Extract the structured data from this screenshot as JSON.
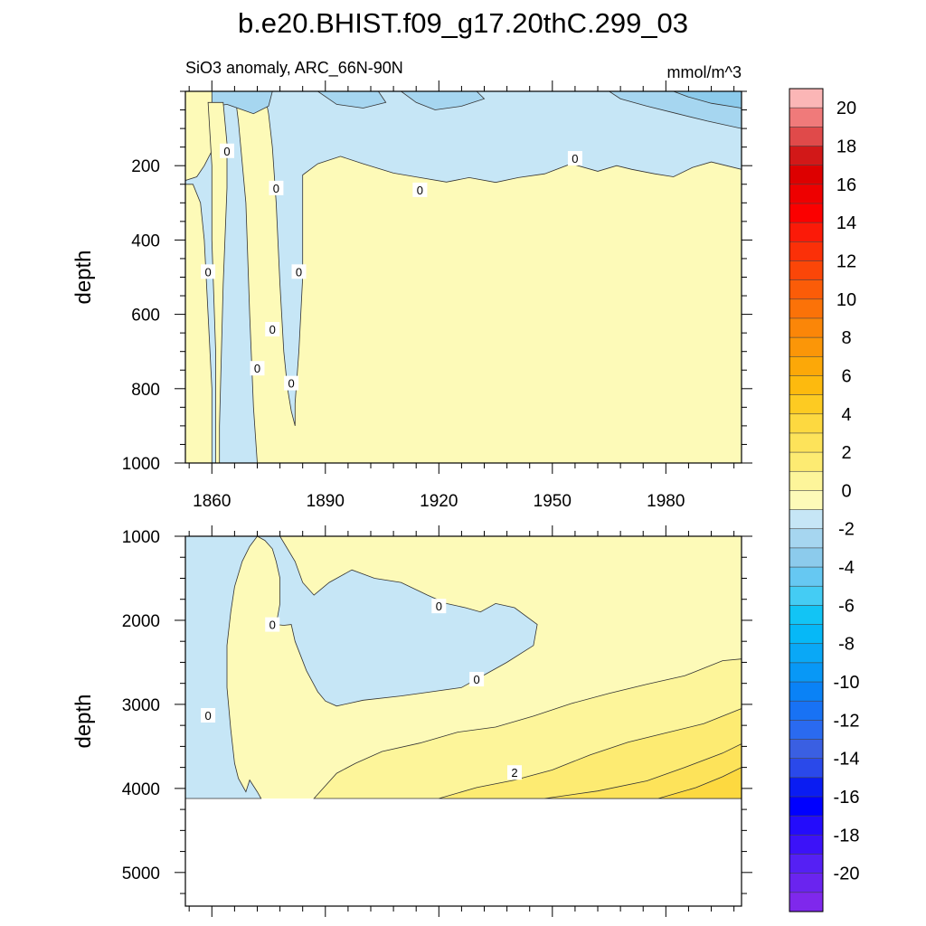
{
  "title": "b.e20.BHIST.f09_g17.20thC.299_03",
  "chart_data": [
    {
      "type": "contour",
      "subtitle_left": "SiO3 anomaly, ARC_66N-90N",
      "subtitle_right": "mmol/m^3",
      "xlabel": "",
      "ylabel": "depth",
      "xlim": [
        1853,
        2000
      ],
      "ylim": [
        1000,
        0
      ],
      "x_ticks": [
        1860,
        1890,
        1920,
        1950,
        1980
      ],
      "x_tick_labels": [
        "1860",
        "1890",
        "1920",
        "1950",
        "1980"
      ],
      "y_ticks": [
        200,
        400,
        600,
        800,
        1000
      ],
      "y_tick_labels": [
        "200",
        "400",
        "600",
        "800",
        "1000"
      ],
      "regions": [
        {
          "level": "-1",
          "color": "#c6e6f6",
          "points": [
            [
              1853,
              0
            ],
            [
              2000,
              0
            ],
            [
              2000,
              210
            ],
            [
              1996,
              200
            ],
            [
              1992,
              190
            ],
            [
              1987,
              205
            ],
            [
              1982,
              230
            ],
            [
              1977,
              222
            ],
            [
              1971,
              210
            ],
            [
              1967,
              200
            ],
            [
              1962,
              215
            ],
            [
              1955,
              195
            ],
            [
              1948,
              222
            ],
            [
              1941,
              232
            ],
            [
              1935,
              245
            ],
            [
              1928,
              232
            ],
            [
              1922,
              244
            ],
            [
              1915,
              232
            ],
            [
              1908,
              220
            ],
            [
              1900,
              195
            ],
            [
              1894,
              175
            ],
            [
              1888,
              195
            ],
            [
              1884,
              225
            ],
            [
              1884,
              500
            ],
            [
              1883,
              700
            ],
            [
              1882,
              840
            ],
            [
              1882,
              900
            ],
            [
              1881,
              860
            ],
            [
              1880,
              800
            ],
            [
              1879,
              700
            ],
            [
              1878,
              520
            ],
            [
              1877,
              300
            ],
            [
              1876,
              150
            ],
            [
              1875,
              60
            ],
            [
              1874,
              10
            ],
            [
              1872,
              0
            ],
            [
              1866,
              0
            ],
            [
              1867,
              80
            ],
            [
              1869,
              300
            ],
            [
              1870,
              600
            ],
            [
              1871,
              850
            ],
            [
              1872,
              1000
            ],
            [
              1860,
              1000
            ],
            [
              1860,
              800
            ],
            [
              1859,
              600
            ],
            [
              1858,
              400
            ],
            [
              1857,
              300
            ],
            [
              1855,
              250
            ],
            [
              1853,
              250
            ]
          ]
        },
        {
          "level": "-2",
          "color": "#a6d6f0",
          "points": [
            [
              1853,
              0
            ],
            [
              1876,
              0
            ],
            [
              1875,
              40
            ],
            [
              1871,
              60
            ],
            [
              1864,
              35
            ],
            [
              1858,
              45
            ],
            [
              1853,
              60
            ]
          ]
        },
        {
          "level": "-2",
          "color": "#a6d6f0",
          "points": [
            [
              1888,
              0
            ],
            [
              1904,
              0
            ],
            [
              1906,
              30
            ],
            [
              1900,
              45
            ],
            [
              1893,
              35
            ]
          ]
        },
        {
          "level": "-2",
          "color": "#a6d6f0",
          "points": [
            [
              1910,
              0
            ],
            [
              1930,
              0
            ],
            [
              1932,
              20
            ],
            [
              1926,
              40
            ],
            [
              1919,
              50
            ],
            [
              1914,
              30
            ]
          ]
        },
        {
          "level": "-2",
          "color": "#a6d6f0",
          "points": [
            [
              1965,
              0
            ],
            [
              2000,
              0
            ],
            [
              2000,
              100
            ],
            [
              1991,
              80
            ],
            [
              1983,
              60
            ],
            [
              1975,
              40
            ],
            [
              1968,
              20
            ]
          ]
        },
        {
          "level": "-3",
          "color": "#8ccbec",
          "points": [
            [
              1982,
              0
            ],
            [
              2000,
              0
            ],
            [
              2000,
              45
            ],
            [
              1992,
              32
            ],
            [
              1986,
              15
            ]
          ]
        },
        {
          "level": "0",
          "color": "#fdfab8",
          "points": [
            [
              1853,
              0
            ],
            [
              1860,
              0
            ],
            [
              1860,
              160
            ],
            [
              1858,
              200
            ],
            [
              1856,
              230
            ],
            [
              1853,
              240
            ]
          ]
        },
        {
          "level": "0",
          "color": "#fdfab8",
          "points": [
            [
              1859,
              30
            ],
            [
              1863,
              30
            ],
            [
              1864,
              140
            ],
            [
              1864,
              260
            ],
            [
              1863,
              520
            ],
            [
              1862,
              900
            ],
            [
              1862,
              1000
            ],
            [
              1861,
              1000
            ],
            [
              1861,
              700
            ],
            [
              1860,
              400
            ],
            [
              1860,
              200
            ]
          ]
        }
      ],
      "contour_labels": [
        {
          "x": 1864,
          "y": 160,
          "text": "0"
        },
        {
          "x": 1877,
          "y": 260,
          "text": "0"
        },
        {
          "x": 1915,
          "y": 265,
          "text": "0"
        },
        {
          "x": 1956,
          "y": 180,
          "text": "0"
        },
        {
          "x": 1859,
          "y": 485,
          "text": "0"
        },
        {
          "x": 1883,
          "y": 485,
          "text": "0"
        },
        {
          "x": 1876,
          "y": 640,
          "text": "0"
        },
        {
          "x": 1872,
          "y": 745,
          "text": "0"
        },
        {
          "x": 1881,
          "y": 785,
          "text": "0"
        }
      ]
    },
    {
      "type": "contour",
      "xlabel": "",
      "ylabel": "depth",
      "xlim": [
        1853,
        2000
      ],
      "ylim": [
        5400,
        1000
      ],
      "data_bottom": 4120,
      "y_ticks": [
        1000,
        2000,
        3000,
        4000,
        5000
      ],
      "y_tick_labels": [
        "1000",
        "2000",
        "3000",
        "4000",
        "5000"
      ],
      "regions": [
        {
          "level": "-1",
          "color": "#c6e6f6",
          "points": [
            [
              1853,
              1000
            ],
            [
              1872,
              1000
            ],
            [
              1870,
              1120
            ],
            [
              1868,
              1300
            ],
            [
              1866,
              1600
            ],
            [
              1865,
              1900
            ],
            [
              1864,
              2300
            ],
            [
              1864,
              2800
            ],
            [
              1865,
              3300
            ],
            [
              1866,
              3700
            ],
            [
              1867,
              3880
            ],
            [
              1869,
              4040
            ],
            [
              1870,
              3900
            ],
            [
              1872,
              4040
            ],
            [
              1873,
              4120
            ],
            [
              1853,
              4120
            ]
          ]
        },
        {
          "level": "-1",
          "color": "#c6e6f6",
          "points": [
            [
              1872,
              1000
            ],
            [
              1878,
              1000
            ],
            [
              1882,
              1300
            ],
            [
              1884,
              1550
            ],
            [
              1887,
              1700
            ],
            [
              1891,
              1550
            ],
            [
              1897,
              1400
            ],
            [
              1903,
              1500
            ],
            [
              1910,
              1550
            ],
            [
              1917,
              1700
            ],
            [
              1922,
              1800
            ],
            [
              1927,
              1850
            ],
            [
              1931,
              1900
            ],
            [
              1935,
              1800
            ],
            [
              1940,
              1850
            ],
            [
              1946,
              2050
            ],
            [
              1945,
              2300
            ],
            [
              1938,
              2500
            ],
            [
              1932,
              2650
            ],
            [
              1926,
              2800
            ],
            [
              1918,
              2850
            ],
            [
              1910,
              2900
            ],
            [
              1900,
              2950
            ],
            [
              1893,
              3020
            ],
            [
              1890,
              2960
            ],
            [
              1888,
              2850
            ],
            [
              1885,
              2600
            ],
            [
              1882,
              2250
            ],
            [
              1881,
              2050
            ],
            [
              1879,
              2060
            ],
            [
              1877,
              2050
            ],
            [
              1878,
              1800
            ],
            [
              1878,
              1500
            ],
            [
              1877,
              1300
            ],
            [
              1876,
              1150
            ],
            [
              1874,
              1050
            ]
          ]
        },
        {
          "level": "1",
          "color": "#fdf59a",
          "points": [
            [
              1887,
              4120
            ],
            [
              1893,
              3820
            ],
            [
              1898,
              3700
            ],
            [
              1905,
              3560
            ],
            [
              1915,
              3460
            ],
            [
              1925,
              3330
            ],
            [
              1935,
              3270
            ],
            [
              1945,
              3140
            ],
            [
              1955,
              2990
            ],
            [
              1965,
              2870
            ],
            [
              1975,
              2760
            ],
            [
              1985,
              2660
            ],
            [
              1995,
              2480
            ],
            [
              2000,
              2460
            ],
            [
              2000,
              4120
            ]
          ]
        },
        {
          "level": "2",
          "color": "#fdeb72",
          "points": [
            [
              1920,
              4120
            ],
            [
              1930,
              3990
            ],
            [
              1940,
              3900
            ],
            [
              1950,
              3780
            ],
            [
              1960,
              3600
            ],
            [
              1970,
              3450
            ],
            [
              1980,
              3340
            ],
            [
              1990,
              3230
            ],
            [
              2000,
              3050
            ],
            [
              2000,
              4120
            ]
          ]
        },
        {
          "level": "3",
          "color": "#fde35a",
          "points": [
            [
              1948,
              4120
            ],
            [
              1962,
              4030
            ],
            [
              1975,
              3910
            ],
            [
              1985,
              3750
            ],
            [
              1995,
              3580
            ],
            [
              2000,
              3470
            ],
            [
              2000,
              4120
            ]
          ]
        },
        {
          "level": "4",
          "color": "#fdd940",
          "points": [
            [
              1978,
              4120
            ],
            [
              1988,
              3990
            ],
            [
              1995,
              3860
            ],
            [
              2000,
              3750
            ],
            [
              2000,
              4120
            ]
          ]
        }
      ],
      "contour_labels": [
        {
          "x": 1876,
          "y": 2050,
          "text": "0"
        },
        {
          "x": 1920,
          "y": 1830,
          "text": "0"
        },
        {
          "x": 1930,
          "y": 2700,
          "text": "0"
        },
        {
          "x": 1859,
          "y": 3130,
          "text": "0"
        },
        {
          "x": 1940,
          "y": 3810,
          "text": "2"
        }
      ]
    }
  ],
  "colorbar": {
    "levels": [
      -21,
      -20,
      -19,
      -18,
      -17,
      -16,
      -15,
      -14,
      -13,
      -12,
      -11,
      -10,
      -9,
      -8,
      -7,
      -6,
      -5,
      -4,
      -3,
      -2,
      -1,
      0,
      1,
      2,
      3,
      4,
      5,
      6,
      7,
      8,
      9,
      10,
      11,
      12,
      13,
      14,
      15,
      16,
      17,
      18,
      19,
      20,
      21
    ],
    "colors": [
      "#7f28ec",
      "#6a24ef",
      "#5520f4",
      "#3c12f8",
      "#240cfb",
      "#0000ff",
      "#0a1cf2",
      "#2a49ea",
      "#3a5fe2",
      "#2a6af0",
      "#1872f4",
      "#0a82f6",
      "#0898f6",
      "#0aa8f6",
      "#06b8f7",
      "#12c4f5",
      "#44ccf4",
      "#66c8f2",
      "#8ccbec",
      "#a6d6f0",
      "#c6e6f6",
      "#fdfab8",
      "#fdf59a",
      "#fdeb72",
      "#fde35a",
      "#fdd940",
      "#fdcb22",
      "#fdba0e",
      "#fca808",
      "#fb9608",
      "#fb8608",
      "#fb7208",
      "#fb5c08",
      "#fb4608",
      "#fb3008",
      "#fb1a08",
      "#fb0000",
      "#ee0000",
      "#dd0000",
      "#d21818",
      "#e04a4a",
      "#f07a7a",
      "#fbb6b6"
    ],
    "tick_labels": [
      "20",
      "18",
      "16",
      "14",
      "12",
      "10",
      "8",
      "6",
      "4",
      "2",
      "0",
      "-2",
      "-4",
      "-6",
      "-8",
      "-10",
      "-12",
      "-14",
      "-16",
      "-18",
      "-20"
    ]
  }
}
